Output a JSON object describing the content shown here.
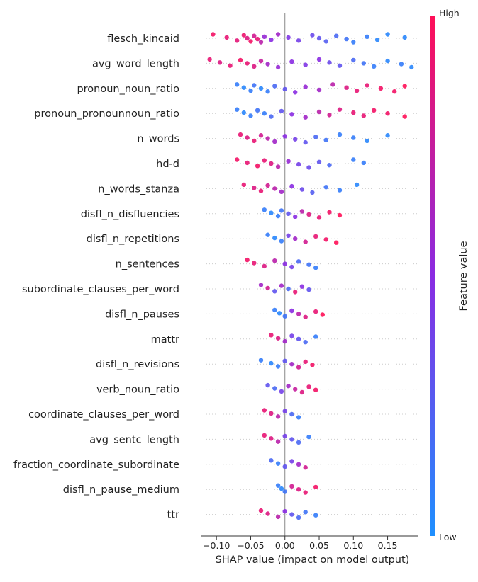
{
  "chart_data": {
    "type": "scatter",
    "subtype": "shap-beeswarm",
    "xlabel": "SHAP value (impact on model output)",
    "xticks": [
      -0.1,
      -0.05,
      0.0,
      0.05,
      0.1,
      0.15
    ],
    "xtick_labels": [
      "−0.10",
      "−0.05",
      "0.00",
      "0.05",
      "0.10",
      "0.15"
    ],
    "xlim": [
      -0.123,
      0.195
    ],
    "colorbar": {
      "title": "Feature value",
      "high_label": "High",
      "low_label": "Low"
    },
    "colors": {
      "low": "#1e90ff",
      "mid": "#8a2be2",
      "high": "#ff0f57",
      "zero_line": "#888888",
      "grid": "#cccccc"
    },
    "features": [
      {
        "name": "flesch_kincaid",
        "points": [
          {
            "x": -0.105,
            "v": 0.95
          },
          {
            "x": -0.085,
            "v": 0.9
          },
          {
            "x": -0.07,
            "v": 0.88
          },
          {
            "x": -0.06,
            "v": 0.92
          },
          {
            "x": -0.055,
            "v": 0.85
          },
          {
            "x": -0.05,
            "v": 0.95
          },
          {
            "x": -0.045,
            "v": 0.8
          },
          {
            "x": -0.04,
            "v": 0.9
          },
          {
            "x": -0.035,
            "v": 0.7
          },
          {
            "x": -0.03,
            "v": 0.55
          },
          {
            "x": -0.02,
            "v": 0.5
          },
          {
            "x": -0.01,
            "v": 0.6
          },
          {
            "x": 0.005,
            "v": 0.45
          },
          {
            "x": 0.02,
            "v": 0.4
          },
          {
            "x": 0.04,
            "v": 0.35
          },
          {
            "x": 0.05,
            "v": 0.3
          },
          {
            "x": 0.06,
            "v": 0.25
          },
          {
            "x": 0.075,
            "v": 0.2
          },
          {
            "x": 0.09,
            "v": 0.15
          },
          {
            "x": 0.1,
            "v": 0.1
          },
          {
            "x": 0.12,
            "v": 0.1
          },
          {
            "x": 0.135,
            "v": 0.05
          },
          {
            "x": 0.15,
            "v": 0.05
          },
          {
            "x": 0.175,
            "v": 0.05
          }
        ]
      },
      {
        "name": "avg_word_length",
        "points": [
          {
            "x": -0.11,
            "v": 0.9
          },
          {
            "x": -0.095,
            "v": 0.85
          },
          {
            "x": -0.08,
            "v": 0.9
          },
          {
            "x": -0.065,
            "v": 0.95
          },
          {
            "x": -0.055,
            "v": 0.9
          },
          {
            "x": -0.045,
            "v": 0.85
          },
          {
            "x": -0.035,
            "v": 0.75
          },
          {
            "x": -0.025,
            "v": 0.6
          },
          {
            "x": -0.01,
            "v": 0.55
          },
          {
            "x": 0.01,
            "v": 0.5
          },
          {
            "x": 0.03,
            "v": 0.45
          },
          {
            "x": 0.05,
            "v": 0.5
          },
          {
            "x": 0.065,
            "v": 0.35
          },
          {
            "x": 0.08,
            "v": 0.3
          },
          {
            "x": 0.1,
            "v": 0.2
          },
          {
            "x": 0.115,
            "v": 0.15
          },
          {
            "x": 0.13,
            "v": 0.1
          },
          {
            "x": 0.15,
            "v": 0.05
          },
          {
            "x": 0.17,
            "v": 0.1
          },
          {
            "x": 0.185,
            "v": 0.05
          }
        ]
      },
      {
        "name": "pronoun_noun_ratio",
        "points": [
          {
            "x": -0.07,
            "v": 0.1
          },
          {
            "x": -0.06,
            "v": 0.05
          },
          {
            "x": -0.05,
            "v": 0.1
          },
          {
            "x": -0.045,
            "v": 0.15
          },
          {
            "x": -0.035,
            "v": 0.05
          },
          {
            "x": -0.025,
            "v": 0.1
          },
          {
            "x": -0.015,
            "v": 0.2
          },
          {
            "x": 0.0,
            "v": 0.3
          },
          {
            "x": 0.015,
            "v": 0.5
          },
          {
            "x": 0.03,
            "v": 0.55
          },
          {
            "x": 0.05,
            "v": 0.6
          },
          {
            "x": 0.07,
            "v": 0.7
          },
          {
            "x": 0.09,
            "v": 0.85
          },
          {
            "x": 0.105,
            "v": 0.9
          },
          {
            "x": 0.12,
            "v": 0.9
          },
          {
            "x": 0.14,
            "v": 0.95
          },
          {
            "x": 0.16,
            "v": 0.95
          },
          {
            "x": 0.175,
            "v": 1.0
          }
        ]
      },
      {
        "name": "pronoun_pronounnoun_ratio",
        "points": [
          {
            "x": -0.07,
            "v": 0.1
          },
          {
            "x": -0.06,
            "v": 0.05
          },
          {
            "x": -0.05,
            "v": 0.1
          },
          {
            "x": -0.04,
            "v": 0.15
          },
          {
            "x": -0.03,
            "v": 0.1
          },
          {
            "x": -0.02,
            "v": 0.2
          },
          {
            "x": -0.005,
            "v": 0.3
          },
          {
            "x": 0.01,
            "v": 0.5
          },
          {
            "x": 0.03,
            "v": 0.6
          },
          {
            "x": 0.05,
            "v": 0.7
          },
          {
            "x": 0.065,
            "v": 0.8
          },
          {
            "x": 0.08,
            "v": 0.85
          },
          {
            "x": 0.1,
            "v": 0.9
          },
          {
            "x": 0.115,
            "v": 0.9
          },
          {
            "x": 0.13,
            "v": 0.95
          },
          {
            "x": 0.15,
            "v": 0.95
          },
          {
            "x": 0.175,
            "v": 1.0
          }
        ]
      },
      {
        "name": "n_words",
        "points": [
          {
            "x": -0.065,
            "v": 0.9
          },
          {
            "x": -0.055,
            "v": 0.85
          },
          {
            "x": -0.045,
            "v": 0.9
          },
          {
            "x": -0.035,
            "v": 0.8
          },
          {
            "x": -0.025,
            "v": 0.7
          },
          {
            "x": -0.015,
            "v": 0.6
          },
          {
            "x": 0.0,
            "v": 0.5
          },
          {
            "x": 0.015,
            "v": 0.4
          },
          {
            "x": 0.03,
            "v": 0.3
          },
          {
            "x": 0.045,
            "v": 0.2
          },
          {
            "x": 0.06,
            "v": 0.15
          },
          {
            "x": 0.08,
            "v": 0.1
          },
          {
            "x": 0.1,
            "v": 0.1
          },
          {
            "x": 0.12,
            "v": 0.05
          },
          {
            "x": 0.15,
            "v": 0.05
          }
        ]
      },
      {
        "name": "hd-d",
        "points": [
          {
            "x": -0.07,
            "v": 0.95
          },
          {
            "x": -0.055,
            "v": 0.9
          },
          {
            "x": -0.04,
            "v": 0.95
          },
          {
            "x": -0.03,
            "v": 0.9
          },
          {
            "x": -0.02,
            "v": 0.85
          },
          {
            "x": -0.01,
            "v": 0.7
          },
          {
            "x": 0.005,
            "v": 0.55
          },
          {
            "x": 0.02,
            "v": 0.4
          },
          {
            "x": 0.035,
            "v": 0.35
          },
          {
            "x": 0.05,
            "v": 0.3
          },
          {
            "x": 0.065,
            "v": 0.2
          },
          {
            "x": 0.1,
            "v": 0.1
          },
          {
            "x": 0.115,
            "v": 0.1
          }
        ]
      },
      {
        "name": "n_words_stanza",
        "points": [
          {
            "x": -0.06,
            "v": 0.9
          },
          {
            "x": -0.045,
            "v": 0.85
          },
          {
            "x": -0.035,
            "v": 0.9
          },
          {
            "x": -0.025,
            "v": 0.8
          },
          {
            "x": -0.015,
            "v": 0.7
          },
          {
            "x": -0.005,
            "v": 0.6
          },
          {
            "x": 0.01,
            "v": 0.5
          },
          {
            "x": 0.025,
            "v": 0.35
          },
          {
            "x": 0.04,
            "v": 0.25
          },
          {
            "x": 0.06,
            "v": 0.15
          },
          {
            "x": 0.08,
            "v": 0.1
          },
          {
            "x": 0.105,
            "v": 0.05
          }
        ]
      },
      {
        "name": "disfl_n_disfluencies",
        "points": [
          {
            "x": -0.03,
            "v": 0.1
          },
          {
            "x": -0.02,
            "v": 0.05
          },
          {
            "x": -0.01,
            "v": 0.1
          },
          {
            "x": -0.005,
            "v": 0.15
          },
          {
            "x": 0.005,
            "v": 0.3
          },
          {
            "x": 0.015,
            "v": 0.5
          },
          {
            "x": 0.025,
            "v": 0.7
          },
          {
            "x": 0.035,
            "v": 0.85
          },
          {
            "x": 0.05,
            "v": 0.9
          },
          {
            "x": 0.065,
            "v": 0.95
          },
          {
            "x": 0.08,
            "v": 1.0
          }
        ]
      },
      {
        "name": "disfl_n_repetitions",
        "points": [
          {
            "x": -0.025,
            "v": 0.1
          },
          {
            "x": -0.015,
            "v": 0.05
          },
          {
            "x": -0.005,
            "v": 0.1
          },
          {
            "x": 0.005,
            "v": 0.4
          },
          {
            "x": 0.015,
            "v": 0.6
          },
          {
            "x": 0.03,
            "v": 0.8
          },
          {
            "x": 0.045,
            "v": 0.9
          },
          {
            "x": 0.06,
            "v": 0.95
          },
          {
            "x": 0.075,
            "v": 1.0
          }
        ]
      },
      {
        "name": "n_sentences",
        "points": [
          {
            "x": -0.055,
            "v": 0.95
          },
          {
            "x": -0.045,
            "v": 0.9
          },
          {
            "x": -0.03,
            "v": 0.85
          },
          {
            "x": -0.015,
            "v": 0.7
          },
          {
            "x": 0.0,
            "v": 0.5
          },
          {
            "x": 0.01,
            "v": 0.4
          },
          {
            "x": 0.02,
            "v": 0.2
          },
          {
            "x": 0.035,
            "v": 0.15
          },
          {
            "x": 0.045,
            "v": 0.1
          }
        ]
      },
      {
        "name": "subordinate_clauses_per_word",
        "points": [
          {
            "x": -0.035,
            "v": 0.6
          },
          {
            "x": -0.025,
            "v": 0.8
          },
          {
            "x": -0.015,
            "v": 0.3
          },
          {
            "x": -0.005,
            "v": 0.6
          },
          {
            "x": 0.005,
            "v": 0.2
          },
          {
            "x": 0.015,
            "v": 0.9
          },
          {
            "x": 0.025,
            "v": 0.5
          },
          {
            "x": 0.035,
            "v": 0.3
          }
        ]
      },
      {
        "name": "disfl_n_pauses",
        "points": [
          {
            "x": -0.015,
            "v": 0.1
          },
          {
            "x": -0.008,
            "v": 0.05
          },
          {
            "x": 0.0,
            "v": 0.15
          },
          {
            "x": 0.01,
            "v": 0.5
          },
          {
            "x": 0.02,
            "v": 0.7
          },
          {
            "x": 0.03,
            "v": 0.85
          },
          {
            "x": 0.045,
            "v": 0.9
          },
          {
            "x": 0.055,
            "v": 1.0
          }
        ]
      },
      {
        "name": "mattr",
        "points": [
          {
            "x": -0.02,
            "v": 0.9
          },
          {
            "x": -0.01,
            "v": 0.85
          },
          {
            "x": 0.0,
            "v": 0.6
          },
          {
            "x": 0.01,
            "v": 0.4
          },
          {
            "x": 0.02,
            "v": 0.3
          },
          {
            "x": 0.03,
            "v": 0.2
          },
          {
            "x": 0.045,
            "v": 0.1
          }
        ]
      },
      {
        "name": "disfl_n_revisions",
        "points": [
          {
            "x": -0.035,
            "v": 0.1
          },
          {
            "x": -0.02,
            "v": 0.05
          },
          {
            "x": -0.01,
            "v": 0.1
          },
          {
            "x": 0.0,
            "v": 0.3
          },
          {
            "x": 0.01,
            "v": 0.6
          },
          {
            "x": 0.02,
            "v": 0.8
          },
          {
            "x": 0.03,
            "v": 0.9
          },
          {
            "x": 0.04,
            "v": 0.95
          }
        ]
      },
      {
        "name": "verb_noun_ratio",
        "points": [
          {
            "x": -0.025,
            "v": 0.3
          },
          {
            "x": -0.015,
            "v": 0.2
          },
          {
            "x": -0.005,
            "v": 0.4
          },
          {
            "x": 0.005,
            "v": 0.6
          },
          {
            "x": 0.015,
            "v": 0.75
          },
          {
            "x": 0.025,
            "v": 0.85
          },
          {
            "x": 0.035,
            "v": 0.9
          },
          {
            "x": 0.045,
            "v": 0.95
          }
        ]
      },
      {
        "name": "coordinate_clauses_per_word",
        "points": [
          {
            "x": -0.03,
            "v": 0.9
          },
          {
            "x": -0.02,
            "v": 0.85
          },
          {
            "x": -0.01,
            "v": 0.7
          },
          {
            "x": 0.0,
            "v": 0.4
          },
          {
            "x": 0.01,
            "v": 0.2
          },
          {
            "x": 0.02,
            "v": 0.1
          }
        ]
      },
      {
        "name": "avg_sentc_length",
        "points": [
          {
            "x": -0.03,
            "v": 0.9
          },
          {
            "x": -0.02,
            "v": 0.85
          },
          {
            "x": -0.01,
            "v": 0.7
          },
          {
            "x": 0.0,
            "v": 0.4
          },
          {
            "x": 0.01,
            "v": 0.3
          },
          {
            "x": 0.02,
            "v": 0.2
          },
          {
            "x": 0.035,
            "v": 0.1
          }
        ]
      },
      {
        "name": "fraction_coordinate_subordinate",
        "points": [
          {
            "x": -0.02,
            "v": 0.2
          },
          {
            "x": -0.01,
            "v": 0.1
          },
          {
            "x": 0.0,
            "v": 0.3
          },
          {
            "x": 0.01,
            "v": 0.4
          },
          {
            "x": 0.02,
            "v": 0.6
          },
          {
            "x": 0.03,
            "v": 0.8
          }
        ]
      },
      {
        "name": "disfl_n_pause_medium",
        "points": [
          {
            "x": -0.01,
            "v": 0.1
          },
          {
            "x": -0.005,
            "v": 0.05
          },
          {
            "x": 0.0,
            "v": 0.15
          },
          {
            "x": 0.01,
            "v": 0.8
          },
          {
            "x": 0.02,
            "v": 0.85
          },
          {
            "x": 0.03,
            "v": 0.9
          },
          {
            "x": 0.045,
            "v": 0.95
          }
        ]
      },
      {
        "name": "ttr",
        "points": [
          {
            "x": -0.035,
            "v": 0.9
          },
          {
            "x": -0.025,
            "v": 0.85
          },
          {
            "x": -0.01,
            "v": 0.7
          },
          {
            "x": 0.0,
            "v": 0.5
          },
          {
            "x": 0.01,
            "v": 0.3
          },
          {
            "x": 0.02,
            "v": 0.2
          },
          {
            "x": 0.03,
            "v": 0.15
          },
          {
            "x": 0.045,
            "v": 0.1
          }
        ]
      }
    ]
  }
}
